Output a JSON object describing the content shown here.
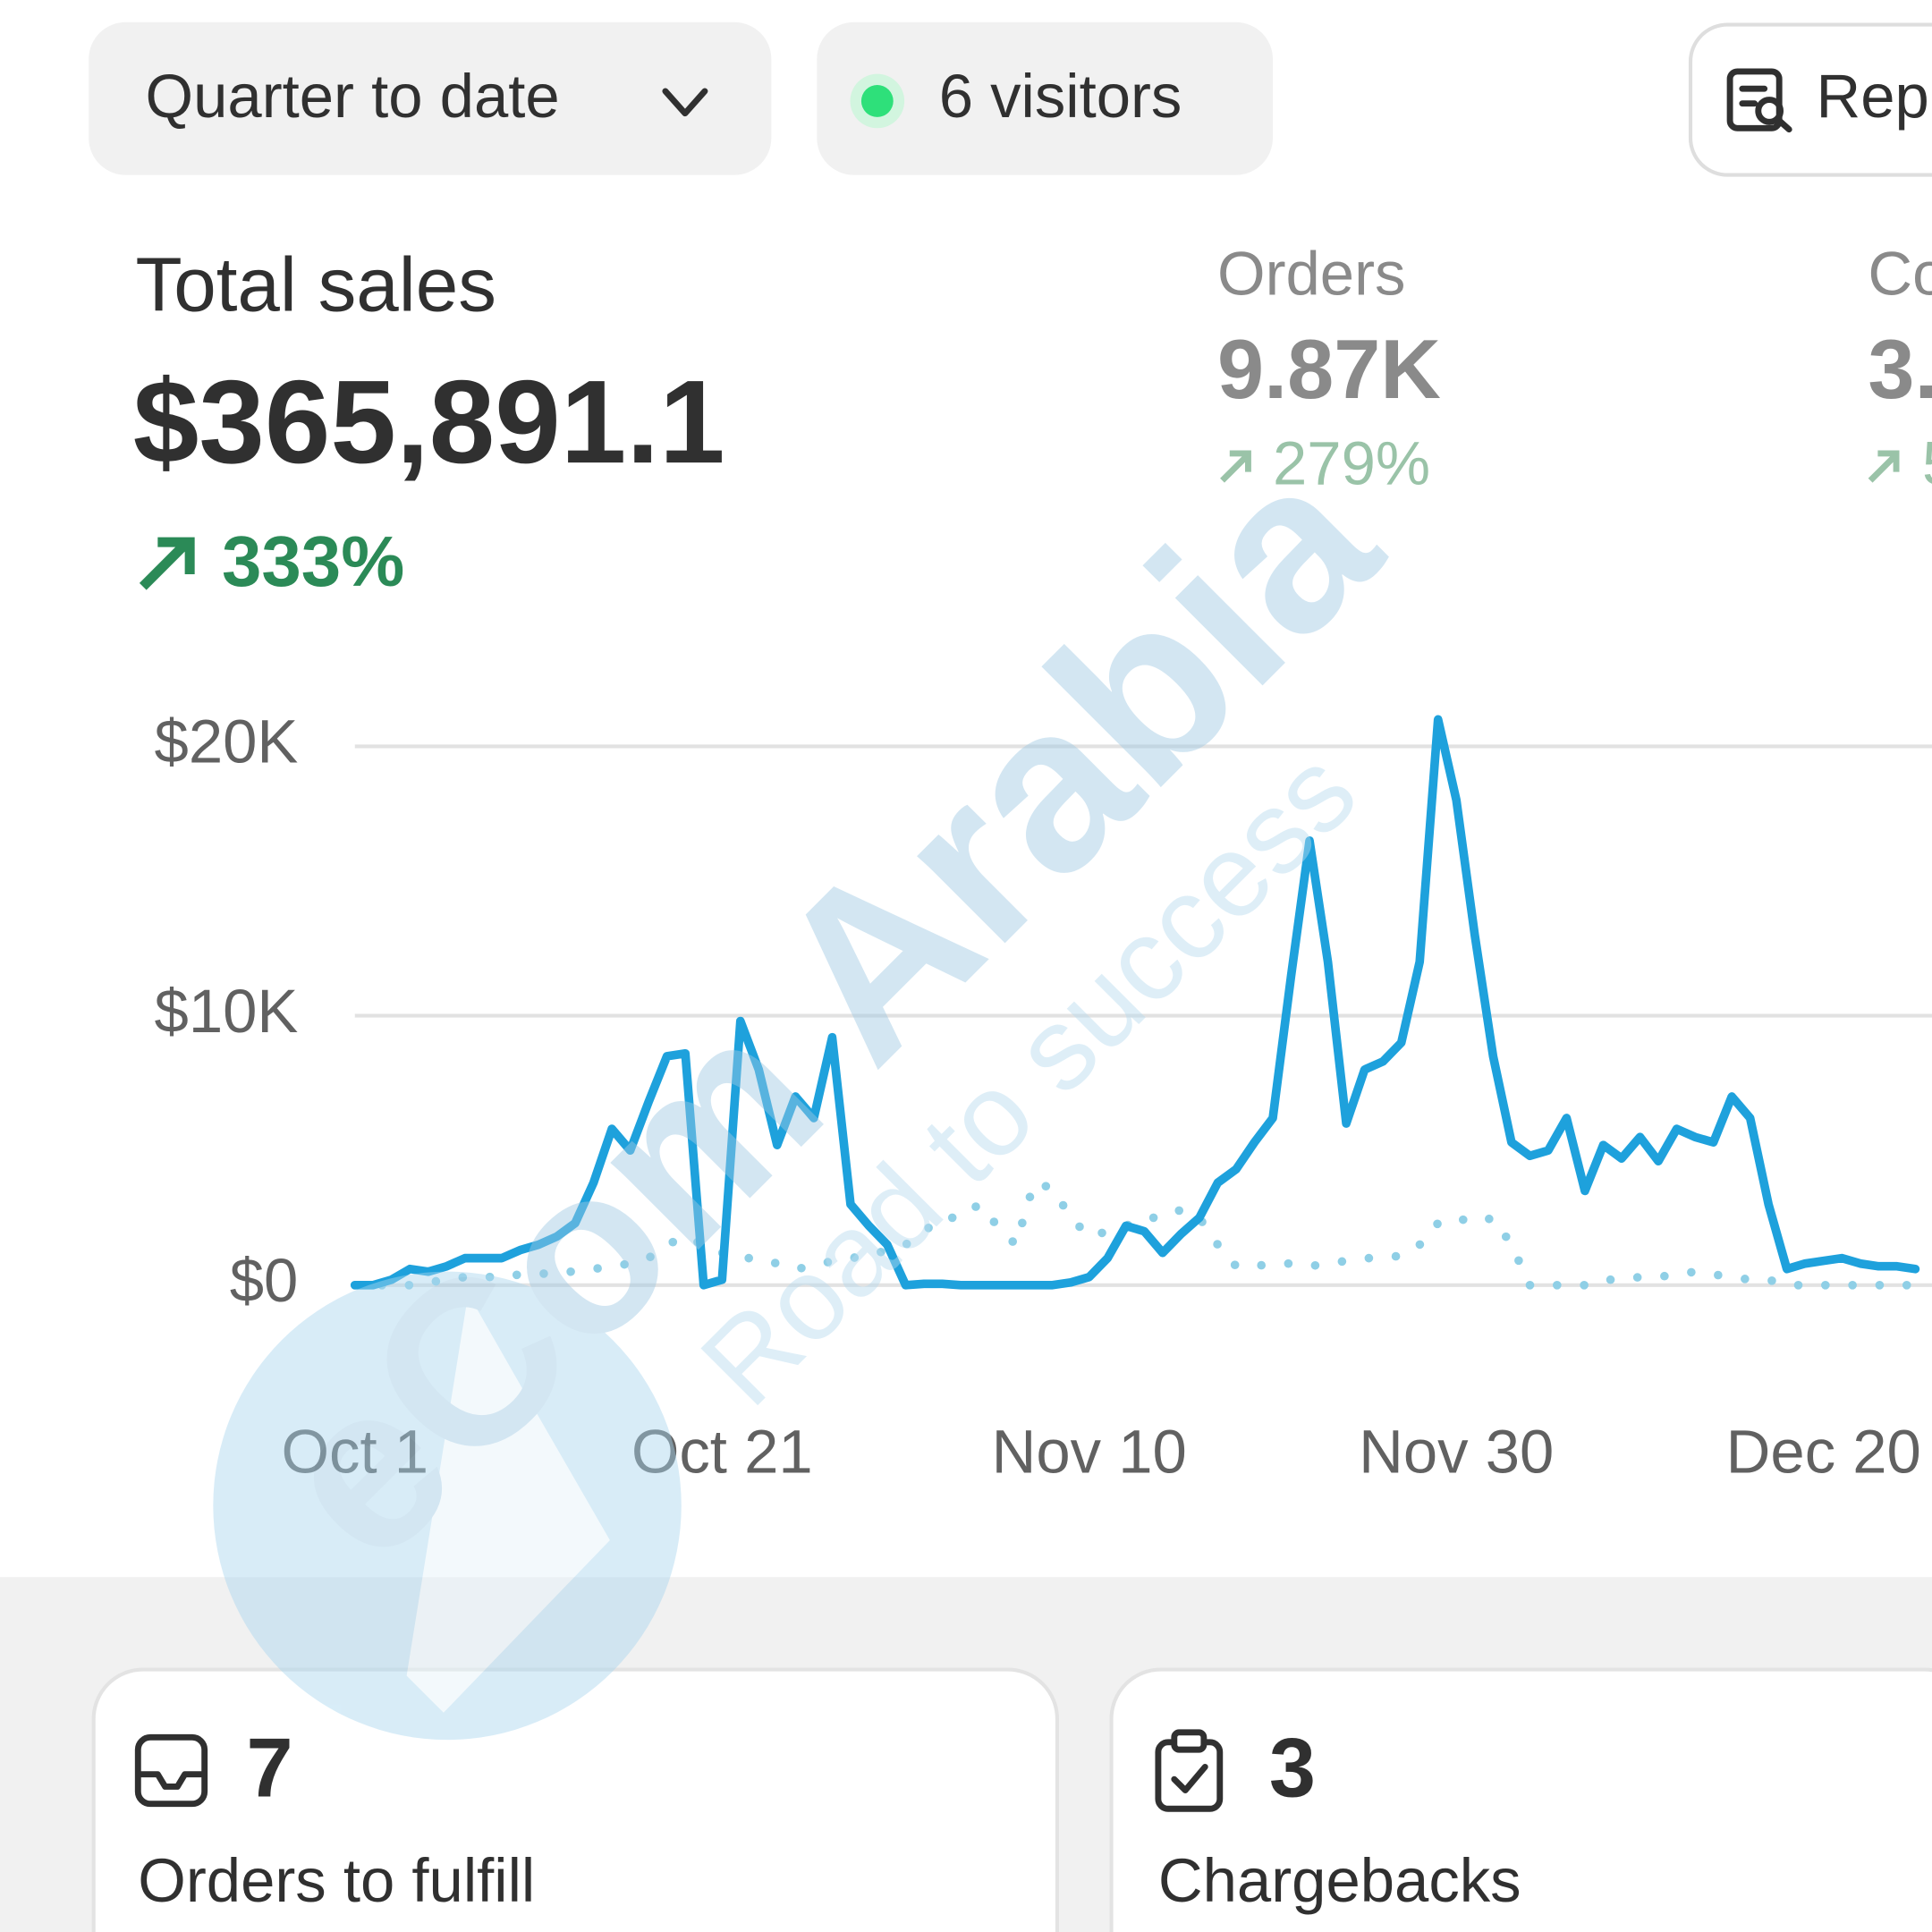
{
  "toolbar": {
    "date_range": "Quarter to date",
    "visitors": "6 visitors",
    "reports": "Rep"
  },
  "metrics": [
    {
      "label": "Total sales",
      "value": "$365,891.1",
      "change": "333%"
    },
    {
      "label": "Orders",
      "value": "9.87K",
      "change": "279%"
    },
    {
      "label": "Co",
      "value": "3.",
      "change": "5"
    }
  ],
  "chart_data": {
    "type": "line",
    "categories": [
      "Oct 1",
      null,
      null,
      null,
      null,
      null,
      null,
      null,
      null,
      null,
      null,
      null,
      null,
      null,
      null,
      null,
      null,
      null,
      null,
      null,
      "Oct 21",
      null,
      null,
      null,
      null,
      null,
      null,
      null,
      null,
      null,
      null,
      null,
      null,
      null,
      null,
      null,
      null,
      null,
      null,
      null,
      "Nov 10",
      null,
      null,
      null,
      null,
      null,
      null,
      null,
      null,
      null,
      null,
      null,
      null,
      null,
      null,
      null,
      null,
      null,
      null,
      null,
      "Nov 30",
      null,
      null,
      null,
      null,
      null,
      null,
      null,
      null,
      null,
      null,
      null,
      null,
      null,
      null,
      null,
      null,
      null,
      null,
      null,
      "Dec 20",
      null,
      null,
      null,
      null,
      null
    ],
    "series": [
      {
        "color": "#1ea1dc",
        "line_style": "solid",
        "values": [
          0,
          0,
          200,
          600,
          500,
          700,
          1000,
          1000,
          1000,
          1300,
          1500,
          1800,
          2300,
          3800,
          5800,
          5000,
          6800,
          8500,
          8600,
          0,
          200,
          9800,
          8000,
          5200,
          7000,
          6200,
          9200,
          3000,
          2200,
          1500,
          0,
          50,
          50,
          0,
          0,
          0,
          0,
          0,
          0,
          100,
          300,
          1000,
          2200,
          2000,
          1200,
          1900,
          2500,
          3800,
          4300,
          5300,
          6200,
          11500,
          16500,
          12000,
          6000,
          8000,
          8300,
          9000,
          12000,
          21000,
          18000,
          13000,
          8500,
          5300,
          4800,
          5000,
          6200,
          3500,
          5200,
          4700,
          5500,
          4600,
          5800,
          5500,
          5300,
          7000,
          6200,
          3000,
          600,
          800,
          900,
          1000,
          800,
          700,
          700,
          600
        ]
      },
      {
        "color": "#8fcfe6",
        "line_style": "dotted",
        "values": [
          0,
          0,
          0,
          0,
          100,
          200,
          300,
          300,
          300,
          400,
          400,
          500,
          500,
          600,
          700,
          800,
          1000,
          1500,
          1800,
          1500,
          1200,
          1000,
          1000,
          800,
          600,
          700,
          900,
          1000,
          1100,
          1300,
          1500,
          2000,
          2500,
          2500,
          3000,
          2200,
          1500,
          3800,
          3600,
          2500,
          1800,
          2000,
          2200,
          2500,
          2500,
          2800,
          2500,
          1500,
          700,
          700,
          800,
          800,
          700,
          800,
          900,
          1000,
          1000,
          1100,
          1500,
          2300,
          2500,
          2300,
          2500,
          1500,
          0,
          0,
          0,
          0,
          200,
          200,
          300,
          300,
          400,
          500,
          400,
          300,
          200,
          200,
          0,
          0,
          0,
          0,
          0,
          0,
          0,
          0
        ]
      }
    ],
    "ylim": [
      0,
      22000
    ],
    "yticks": [
      {
        "value": 0,
        "label": "$0"
      },
      {
        "value": 10000,
        "label": "$10K"
      },
      {
        "value": 20000,
        "label": "$20K"
      }
    ],
    "grid": true
  },
  "cards": [
    {
      "count": "7",
      "label": "Orders to fulfill"
    },
    {
      "count": "3",
      "label": "Chargebacks"
    }
  ],
  "watermark": {
    "title": "eCom Arabia",
    "subtitle": "Road to success"
  }
}
